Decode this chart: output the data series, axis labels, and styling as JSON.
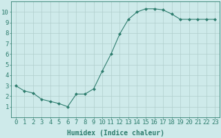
{
  "x": [
    0,
    1,
    2,
    3,
    4,
    5,
    6,
    7,
    8,
    9,
    10,
    11,
    12,
    13,
    14,
    15,
    16,
    17,
    18,
    19,
    20,
    21,
    22,
    23
  ],
  "y": [
    3.0,
    2.5,
    2.3,
    1.7,
    1.5,
    1.3,
    1.0,
    2.2,
    2.2,
    2.7,
    4.4,
    6.0,
    7.9,
    9.3,
    10.0,
    10.3,
    10.3,
    10.2,
    9.8,
    9.3,
    9.3,
    9.3,
    9.3,
    9.3
  ],
  "xlabel": "Humidex (Indice chaleur)",
  "ylim": [
    0,
    11
  ],
  "xlim": [
    -0.5,
    23.5
  ],
  "yticks": [
    1,
    2,
    3,
    4,
    5,
    6,
    7,
    8,
    9,
    10
  ],
  "xticks": [
    0,
    1,
    2,
    3,
    4,
    5,
    6,
    7,
    8,
    9,
    10,
    11,
    12,
    13,
    14,
    15,
    16,
    17,
    18,
    19,
    20,
    21,
    22,
    23
  ],
  "line_color": "#2e7d6e",
  "marker": "D",
  "marker_size": 2.0,
  "bg_color": "#ceeaea",
  "grid_color": "#b0cecc",
  "axis_color": "#2e7d6e",
  "tick_label_color": "#2e7d6e",
  "xlabel_color": "#2e7d6e",
  "xlabel_fontsize": 7,
  "tick_fontsize": 6.5
}
